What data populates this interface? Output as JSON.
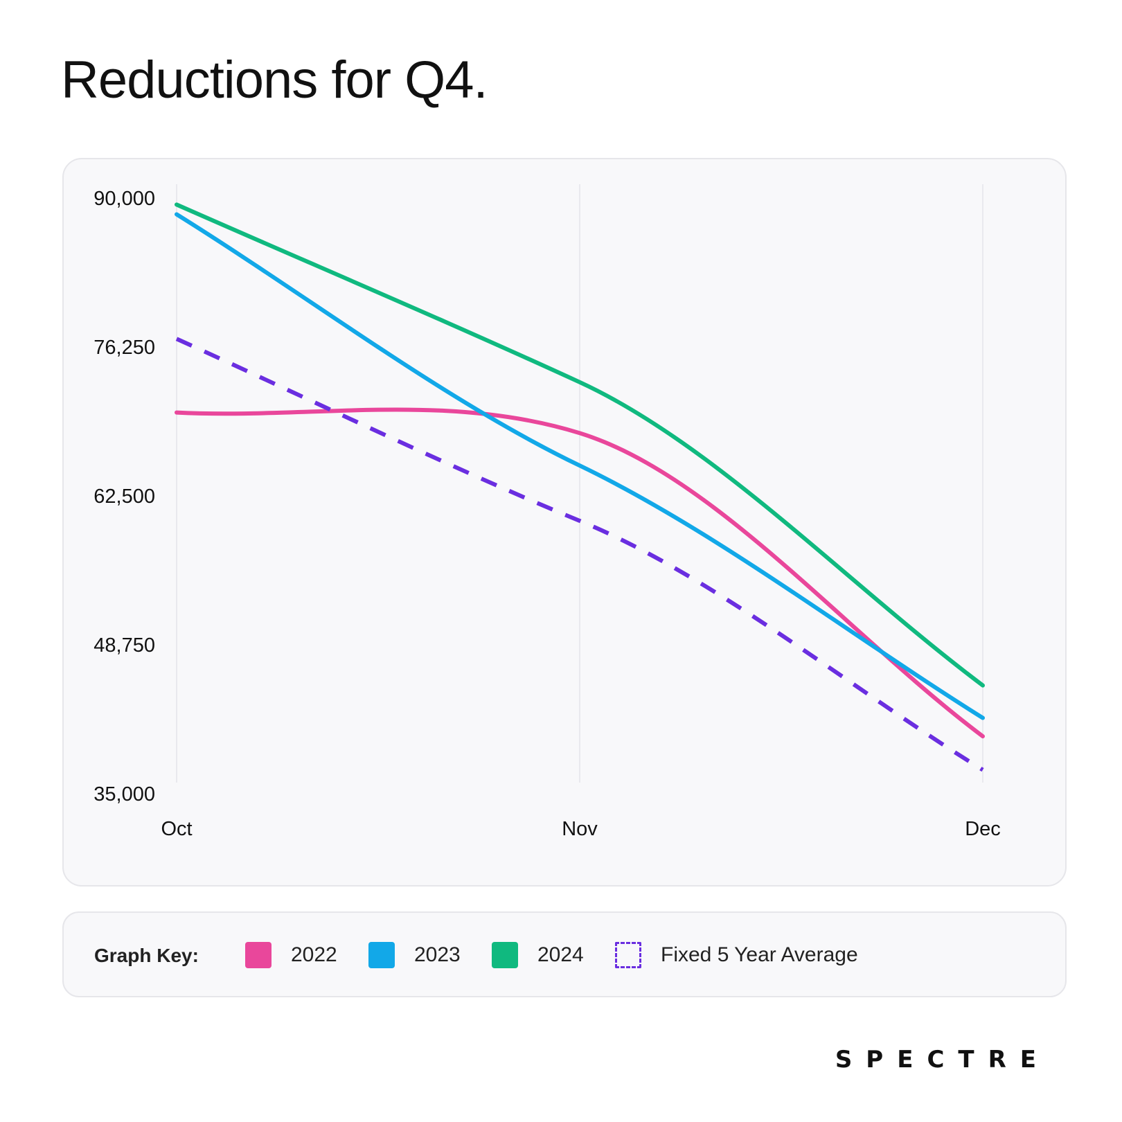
{
  "title": "Reductions for Q4.",
  "chart_data": {
    "type": "line",
    "categories": [
      "Oct",
      "Nov",
      "Dec"
    ],
    "y_ticks": [
      "90,000",
      "76,250",
      "62,500",
      "48,750",
      "35,000"
    ],
    "ylim": [
      35000,
      90000
    ],
    "grid": "vertical",
    "series": [
      {
        "name": "2022",
        "values": [
          70200,
          68300,
          40300
        ],
        "color": "#e9479b",
        "dashed": false
      },
      {
        "name": "2023",
        "values": [
          88500,
          65300,
          42000
        ],
        "color": "#12a8e8",
        "dashed": false
      },
      {
        "name": "2024",
        "values": [
          89400,
          73000,
          45000
        ],
        "color": "#10b97f",
        "dashed": false
      },
      {
        "name": "Fixed 5 Year Average",
        "values": [
          77000,
          60200,
          37200
        ],
        "color": "#6a2ee0",
        "dashed": true
      }
    ]
  },
  "legend": {
    "title": "Graph Key:",
    "items": [
      {
        "label": "2022",
        "color": "#e9479b",
        "dashed": false
      },
      {
        "label": "2023",
        "color": "#12a8e8",
        "dashed": false
      },
      {
        "label": "2024",
        "color": "#10b97f",
        "dashed": false
      },
      {
        "label": "Fixed 5 Year Average",
        "color": "#6a2ee0",
        "dashed": true
      }
    ]
  },
  "brand": "SPECTRE"
}
